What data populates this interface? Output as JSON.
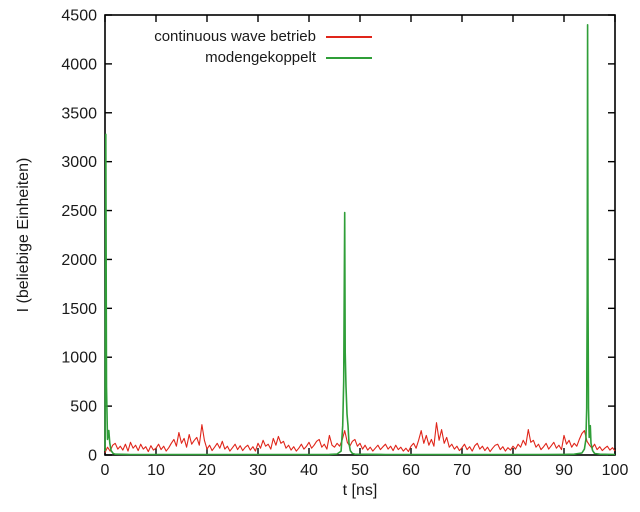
{
  "chart_data": {
    "type": "line",
    "title": "",
    "xlabel": "t [ns]",
    "ylabel": "I (beliebige Einheiten)",
    "xlim": [
      0,
      100
    ],
    "ylim": [
      0,
      4500
    ],
    "x_ticks": [
      0,
      10,
      20,
      30,
      40,
      50,
      60,
      70,
      80,
      90,
      100
    ],
    "y_ticks": [
      0,
      500,
      1000,
      1500,
      2000,
      2500,
      3000,
      3500,
      4000,
      4500
    ],
    "grid": false,
    "legend_position": "top-inside",
    "background_color": "#ffffff",
    "axis_color": "#000000",
    "text_color": "#1a1a1a",
    "series": [
      {
        "name": "continuous wave betrieb",
        "color": "#e0251a",
        "style": "noise",
        "t_start": 0,
        "t_step": 0.5,
        "values": [
          25,
          80,
          40,
          100,
          120,
          60,
          90,
          50,
          110,
          40,
          130,
          70,
          100,
          45,
          110,
          60,
          85,
          35,
          95,
          50,
          70,
          110,
          55,
          90,
          40,
          75,
          120,
          160,
          90,
          230,
          120,
          170,
          80,
          210,
          110,
          150,
          180,
          100,
          310,
          150,
          60,
          100,
          45,
          80,
          120,
          70,
          140,
          60,
          90,
          40,
          75,
          110,
          55,
          95,
          45,
          80,
          100,
          50,
          85,
          40,
          120,
          70,
          150,
          90,
          110,
          60,
          170,
          100,
          190,
          120,
          140,
          70,
          100,
          50,
          85,
          40,
          70,
          110,
          60,
          90,
          130,
          70,
          100,
          140,
          160,
          80,
          110,
          60,
          200,
          100,
          80,
          120,
          90,
          150,
          250,
          130,
          90,
          140,
          160,
          90,
          120,
          60,
          100,
          50,
          80,
          40,
          70,
          100,
          55,
          85,
          110,
          60,
          90,
          45,
          100,
          55,
          80,
          40,
          70,
          35,
          90,
          120,
          70,
          150,
          250,
          120,
          200,
          100,
          160,
          90,
          330,
          150,
          260,
          120,
          180,
          80,
          110,
          60,
          90,
          45,
          75,
          110,
          55,
          85,
          40,
          95,
          120,
          60,
          90,
          45,
          80,
          35,
          70,
          100,
          110,
          55,
          85,
          40,
          75,
          50,
          90,
          60,
          110,
          80,
          150,
          100,
          260,
          130,
          150,
          80,
          110,
          55,
          85,
          120,
          60,
          95,
          130,
          70,
          100,
          55,
          200,
          110,
          150,
          80,
          120,
          90,
          160,
          220,
          250,
          140,
          100,
          70,
          110,
          55,
          85,
          45,
          70,
          90,
          50,
          75,
          40
        ]
      },
      {
        "name": "modengekoppelt",
        "color": "#2f9e38",
        "style": "pulses",
        "points": [
          [
            0,
            40
          ],
          [
            0.15,
            3280
          ],
          [
            0.3,
            700
          ],
          [
            0.5,
            160
          ],
          [
            0.75,
            250
          ],
          [
            0.95,
            120
          ],
          [
            1.2,
            45
          ],
          [
            1.6,
            15
          ],
          [
            2,
            8
          ],
          [
            5,
            5
          ],
          [
            10,
            5
          ],
          [
            15,
            5
          ],
          [
            20,
            5
          ],
          [
            25,
            5
          ],
          [
            30,
            5
          ],
          [
            35,
            5
          ],
          [
            40,
            5
          ],
          [
            44,
            6
          ],
          [
            45.5,
            10
          ],
          [
            46.3,
            40
          ],
          [
            46.6,
            300
          ],
          [
            46.8,
            750
          ],
          [
            47.0,
            2480
          ],
          [
            47.1,
            1050
          ],
          [
            47.25,
            700
          ],
          [
            47.45,
            420
          ],
          [
            47.65,
            300
          ],
          [
            47.85,
            120
          ],
          [
            48.1,
            45
          ],
          [
            48.5,
            15
          ],
          [
            49,
            8
          ],
          [
            55,
            5
          ],
          [
            60,
            5
          ],
          [
            65,
            5
          ],
          [
            70,
            5
          ],
          [
            75,
            5
          ],
          [
            80,
            5
          ],
          [
            85,
            5
          ],
          [
            90,
            6
          ],
          [
            92,
            8
          ],
          [
            93.5,
            20
          ],
          [
            94.0,
            60
          ],
          [
            94.3,
            160
          ],
          [
            94.45,
            480
          ],
          [
            94.55,
            1650
          ],
          [
            94.62,
            4400
          ],
          [
            94.7,
            1650
          ],
          [
            94.8,
            480
          ],
          [
            94.95,
            180
          ],
          [
            95.15,
            300
          ],
          [
            95.3,
            120
          ],
          [
            95.6,
            45
          ],
          [
            96,
            15
          ],
          [
            97,
            8
          ],
          [
            100,
            5
          ]
        ]
      }
    ],
    "pulse_peaks": [
      {
        "t": 0.15,
        "value": 3280
      },
      {
        "t": 47.0,
        "value": 2480
      },
      {
        "t": 94.6,
        "value": 4400
      }
    ]
  }
}
